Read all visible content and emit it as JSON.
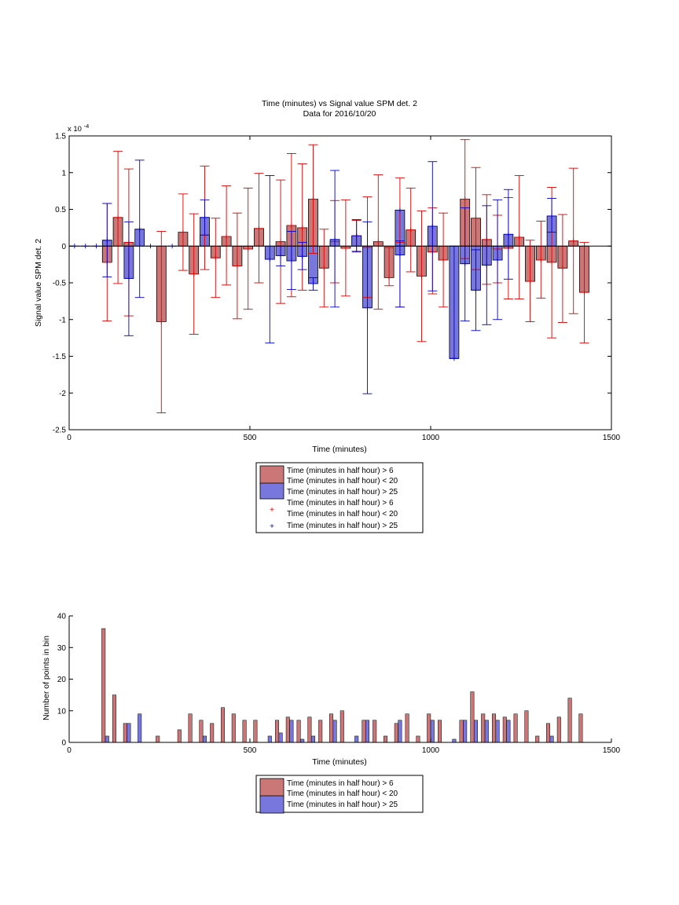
{
  "colors": {
    "red_fill": "#cc7777",
    "blue_fill": "#7777dd",
    "red_err": "#dd0000",
    "blue_err": "#0000cc",
    "axis": "#000000"
  },
  "chart_data": [
    {
      "type": "bar",
      "title": "Time (minutes) vs Signal value SPM det. 2",
      "subtitle": "Data for 2016/10/20",
      "xlabel": "Time (minutes)",
      "ylabel": "Signal value SPM det. 2",
      "exponent_label": "x 10",
      "exponent_power": "-4",
      "xlim": [
        0,
        1500
      ],
      "ylim": [
        -2.5,
        1.5
      ],
      "xticks": [
        "0",
        "500",
        "1000",
        "1500"
      ],
      "yticks": [
        "-2.5",
        "-2",
        "-1.5",
        "-1",
        "-0.5",
        "0",
        "0.5",
        "1",
        "1.5"
      ],
      "legend": {
        "entries": [
          "Time (minutes in half hour) > 6",
          "Time (minutes in half hour) < 20",
          "Time (minutes in half hour) > 25",
          "Time (minutes in half hour) > 6",
          "Time (minutes in half hour) < 20",
          "Time (minutes in half hour) > 25"
        ],
        "markers": [
          "+",
          "+"
        ]
      },
      "series": [
        {
          "values": [
            {
              "x": 105,
              "y": -0.22,
              "lo": -1.02,
              "hi": 0.58
            },
            {
              "x": 135,
              "y": 0.39,
              "lo": -0.51,
              "hi": 1.29
            },
            {
              "x": 165,
              "y": 0.05,
              "lo": -0.95,
              "hi": 1.05
            },
            {
              "x": 255,
              "y": -1.03,
              "lo": -2.27,
              "hi": 0.2
            },
            {
              "x": 315,
              "y": 0.19,
              "lo": -0.33,
              "hi": 0.71
            },
            {
              "x": 345,
              "y": -0.38,
              "lo": -1.2,
              "hi": 0.44
            },
            {
              "x": 375,
              "y": 0.15,
              "lo": -0.32,
              "hi": 1.09
            },
            {
              "x": 405,
              "y": -0.16,
              "lo": -0.7,
              "hi": 0.38
            },
            {
              "x": 435,
              "y": 0.13,
              "lo": -0.53,
              "hi": 0.82
            },
            {
              "x": 465,
              "y": -0.27,
              "lo": -0.99,
              "hi": 0.45
            },
            {
              "x": 495,
              "y": -0.04,
              "lo": -0.86,
              "hi": 0.79
            },
            {
              "x": 525,
              "y": 0.24,
              "lo": -0.5,
              "hi": 0.99
            },
            {
              "x": 585,
              "y": 0.06,
              "lo": -0.78,
              "hi": 0.9
            },
            {
              "x": 615,
              "y": 0.28,
              "lo": -0.69,
              "hi": 1.26
            },
            {
              "x": 645,
              "y": 0.25,
              "lo": -0.6,
              "hi": 1.12
            },
            {
              "x": 675,
              "y": 0.64,
              "lo": -0.1,
              "hi": 1.38
            },
            {
              "x": 705,
              "y": -0.3,
              "lo": -0.83,
              "hi": 0.23
            },
            {
              "x": 735,
              "y": 0.06,
              "lo": -0.5,
              "hi": 0.62
            },
            {
              "x": 765,
              "y": -0.03,
              "lo": -0.68,
              "hi": 0.63
            },
            {
              "x": 795,
              "y": 0.14,
              "lo": -0.07,
              "hi": 0.35
            },
            {
              "x": 825,
              "y": -0.02,
              "lo": -0.7,
              "hi": 0.67
            },
            {
              "x": 855,
              "y": 0.06,
              "lo": -0.86,
              "hi": 0.97
            },
            {
              "x": 885,
              "y": -0.43,
              "lo": -0.54,
              "hi": -0.02
            },
            {
              "x": 915,
              "y": 0.05,
              "lo": -0.83,
              "hi": 0.93
            },
            {
              "x": 945,
              "y": 0.22,
              "lo": -0.35,
              "hi": 0.79
            },
            {
              "x": 975,
              "y": -0.41,
              "lo": -1.3,
              "hi": 0.48
            },
            {
              "x": 1005,
              "y": -0.08,
              "lo": -0.65,
              "hi": 0.52
            },
            {
              "x": 1035,
              "y": -0.19,
              "lo": -0.83,
              "hi": 0.45
            },
            {
              "x": 1095,
              "y": 0.64,
              "lo": -0.17,
              "hi": 1.45
            },
            {
              "x": 1125,
              "y": 0.38,
              "lo": -0.32,
              "hi": 1.07
            },
            {
              "x": 1155,
              "y": 0.09,
              "lo": -0.52,
              "hi": 0.7
            },
            {
              "x": 1185,
              "y": -0.04,
              "lo": -0.5,
              "hi": 0.42
            },
            {
              "x": 1215,
              "y": -0.03,
              "lo": -0.72,
              "hi": 0.66
            },
            {
              "x": 1245,
              "y": 0.12,
              "lo": -0.72,
              "hi": 0.96
            },
            {
              "x": 1275,
              "y": -0.48,
              "lo": -1.03,
              "hi": 0.08
            },
            {
              "x": 1305,
              "y": -0.19,
              "lo": -0.71,
              "hi": 0.34
            },
            {
              "x": 1335,
              "y": -0.22,
              "lo": -1.25,
              "hi": 0.8
            },
            {
              "x": 1365,
              "y": -0.3,
              "lo": -1.04,
              "hi": 0.43
            },
            {
              "x": 1395,
              "y": 0.07,
              "lo": -0.92,
              "hi": 1.06
            },
            {
              "x": 1425,
              "y": -0.63,
              "lo": -1.32,
              "hi": 0.05
            }
          ]
        },
        {
          "values": [
            {
              "x": 15,
              "y": 0
            },
            {
              "x": 45,
              "y": 0
            },
            {
              "x": 75,
              "y": 0
            },
            {
              "x": 105,
              "y": 0.08,
              "lo": -0.42,
              "hi": 0.58
            },
            {
              "x": 165,
              "y": -0.44,
              "lo": -1.22,
              "hi": 0.33
            },
            {
              "x": 195,
              "y": 0.23,
              "lo": -0.7,
              "hi": 1.17
            },
            {
              "x": 225,
              "y": 0
            },
            {
              "x": 285,
              "y": 0
            },
            {
              "x": 375,
              "y": 0.39,
              "lo": 0.15,
              "hi": 0.63
            },
            {
              "x": 555,
              "y": -0.18,
              "lo": -1.32,
              "hi": 0.96
            },
            {
              "x": 585,
              "y": -0.13,
              "lo": -0.27,
              "hi": 0
            },
            {
              "x": 615,
              "y": -0.2,
              "lo": -0.59,
              "hi": 0.2
            },
            {
              "x": 645,
              "y": -0.14,
              "lo": -0.32,
              "hi": 0.05
            },
            {
              "x": 675,
              "y": -0.51,
              "lo": -0.6,
              "hi": -0.43
            },
            {
              "x": 735,
              "y": 0.09,
              "lo": -0.83,
              "hi": 1.03
            },
            {
              "x": 795,
              "y": 0.14,
              "lo": -0.08,
              "hi": 0.36
            },
            {
              "x": 825,
              "y": -0.84,
              "lo": -2.01,
              "hi": 0.33
            },
            {
              "x": 915,
              "y": 0.49,
              "lo": -0.83,
              "hi": 0.07
            },
            {
              "x": 915,
              "y": -0.12
            },
            {
              "x": 1005,
              "y": 0.27,
              "lo": -0.61,
              "hi": 1.15
            },
            {
              "x": 1065,
              "y": -1.53,
              "lo": -1.53,
              "hi": 0
            },
            {
              "x": 1095,
              "y": -0.24,
              "lo": -1.02,
              "hi": 0.52
            },
            {
              "x": 1125,
              "y": -0.6,
              "lo": -1.15,
              "hi": -0.05
            },
            {
              "x": 1155,
              "y": -0.26,
              "lo": -1.07,
              "hi": 0.55
            },
            {
              "x": 1185,
              "y": -0.19,
              "lo": -1.0,
              "hi": 0.63
            },
            {
              "x": 1215,
              "y": 0.16,
              "lo": -0.45,
              "hi": 0.77
            },
            {
              "x": 1335,
              "y": 0.41,
              "lo": 0.19,
              "hi": 0.65
            }
          ]
        }
      ]
    },
    {
      "type": "bar",
      "xlabel": "Time (minutes)",
      "ylabel": "Number of points in bin",
      "xlim": [
        0,
        1500
      ],
      "ylim": [
        0,
        40
      ],
      "xticks": [
        "0",
        "500",
        "1000",
        "1500"
      ],
      "yticks": [
        "0",
        "10",
        "20",
        "30",
        "40"
      ],
      "legend": {
        "entries": [
          "Time (minutes in half hour) > 6",
          "Time (minutes in half hour) < 20",
          "Time (minutes in half hour) > 25"
        ]
      },
      "series": [
        {
          "values": [
            {
              "x": 95,
              "y": 36
            },
            {
              "x": 125,
              "y": 15
            },
            {
              "x": 155,
              "y": 6
            },
            {
              "x": 245,
              "y": 2
            },
            {
              "x": 305,
              "y": 4
            },
            {
              "x": 335,
              "y": 9
            },
            {
              "x": 365,
              "y": 7
            },
            {
              "x": 395,
              "y": 6
            },
            {
              "x": 425,
              "y": 11
            },
            {
              "x": 455,
              "y": 9
            },
            {
              "x": 485,
              "y": 7
            },
            {
              "x": 515,
              "y": 7
            },
            {
              "x": 575,
              "y": 7
            },
            {
              "x": 605,
              "y": 8
            },
            {
              "x": 635,
              "y": 7
            },
            {
              "x": 665,
              "y": 8
            },
            {
              "x": 695,
              "y": 7
            },
            {
              "x": 725,
              "y": 9
            },
            {
              "x": 755,
              "y": 10
            },
            {
              "x": 815,
              "y": 7
            },
            {
              "x": 845,
              "y": 7
            },
            {
              "x": 875,
              "y": 2
            },
            {
              "x": 905,
              "y": 6
            },
            {
              "x": 935,
              "y": 9
            },
            {
              "x": 965,
              "y": 2
            },
            {
              "x": 995,
              "y": 9
            },
            {
              "x": 1025,
              "y": 7
            },
            {
              "x": 1085,
              "y": 7
            },
            {
              "x": 1115,
              "y": 16
            },
            {
              "x": 1145,
              "y": 9
            },
            {
              "x": 1175,
              "y": 9
            },
            {
              "x": 1205,
              "y": 8
            },
            {
              "x": 1235,
              "y": 9
            },
            {
              "x": 1265,
              "y": 10
            },
            {
              "x": 1295,
              "y": 2
            },
            {
              "x": 1325,
              "y": 6
            },
            {
              "x": 1355,
              "y": 8
            },
            {
              "x": 1385,
              "y": 14
            },
            {
              "x": 1415,
              "y": 9
            }
          ]
        },
        {
          "values": [
            {
              "x": 105,
              "y": 2
            },
            {
              "x": 165,
              "y": 6
            },
            {
              "x": 195,
              "y": 9
            },
            {
              "x": 375,
              "y": 2
            },
            {
              "x": 555,
              "y": 2
            },
            {
              "x": 585,
              "y": 3
            },
            {
              "x": 615,
              "y": 7
            },
            {
              "x": 645,
              "y": 1
            },
            {
              "x": 675,
              "y": 2
            },
            {
              "x": 735,
              "y": 7
            },
            {
              "x": 795,
              "y": 2
            },
            {
              "x": 825,
              "y": 7
            },
            {
              "x": 915,
              "y": 7
            },
            {
              "x": 1005,
              "y": 7
            },
            {
              "x": 1065,
              "y": 1
            },
            {
              "x": 1095,
              "y": 7
            },
            {
              "x": 1125,
              "y": 7
            },
            {
              "x": 1155,
              "y": 7
            },
            {
              "x": 1185,
              "y": 7
            },
            {
              "x": 1215,
              "y": 7
            },
            {
              "x": 1335,
              "y": 2
            }
          ]
        }
      ]
    }
  ]
}
